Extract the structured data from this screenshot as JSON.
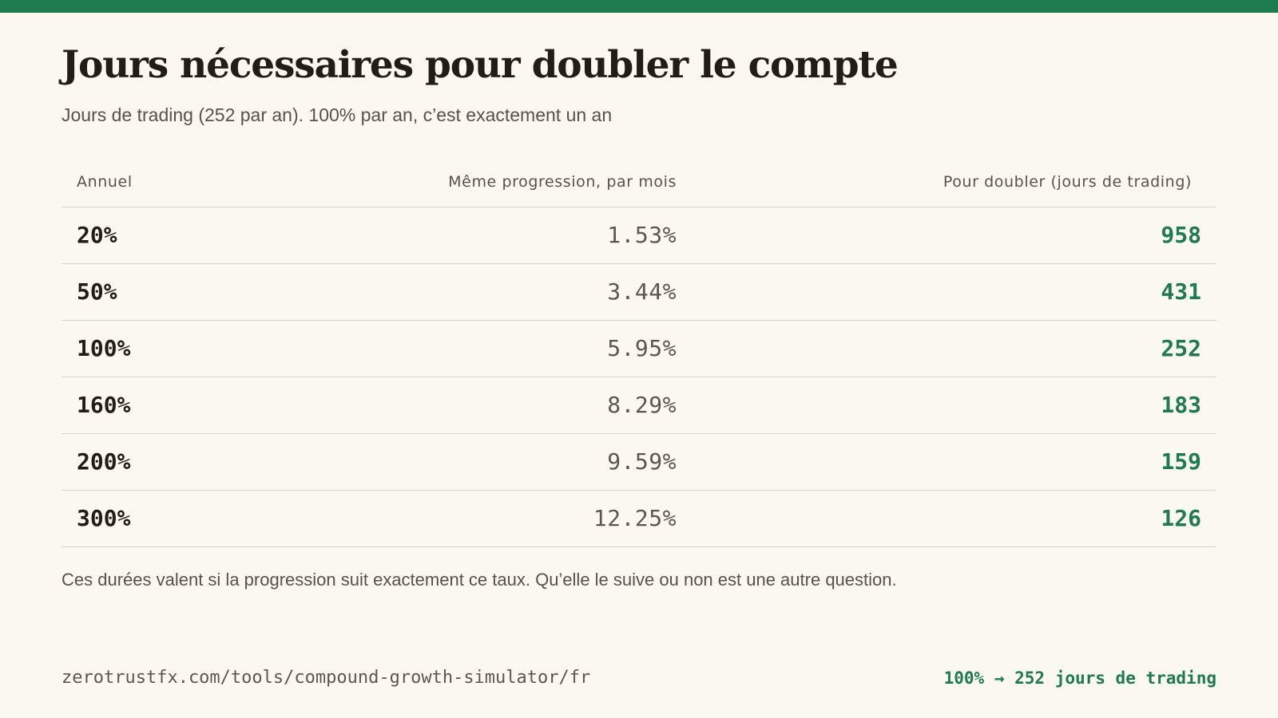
{
  "header": {
    "title": "Jours nécessaires pour doubler le compte",
    "subtitle": "Jours de trading (252 par an). 100% par an, c’est exactement un an"
  },
  "colors": {
    "accent": "#1e7a4f",
    "background": "#fbf8f0",
    "text": "#231d17",
    "muted": "#5a524a",
    "rule": "#d9d3c4"
  },
  "chart_data": {
    "type": "table",
    "columns": [
      "Annuel",
      "Même progression, par mois",
      "Pour doubler (jours de trading)"
    ],
    "rows": [
      {
        "annual": "20%",
        "monthly": "1.53%",
        "days": "958"
      },
      {
        "annual": "50%",
        "monthly": "3.44%",
        "days": "431"
      },
      {
        "annual": "100%",
        "monthly": "5.95%",
        "days": "252"
      },
      {
        "annual": "160%",
        "monthly": "8.29%",
        "days": "183"
      },
      {
        "annual": "200%",
        "monthly": "9.59%",
        "days": "159"
      },
      {
        "annual": "300%",
        "monthly": "12.25%",
        "days": "126"
      }
    ]
  },
  "note": "Ces durées valent si la progression suit exactement ce taux. Qu’elle le suive ou non est une autre question.",
  "footer": {
    "url": "zerotrustfx.com/tools/compound-growth-simulator/fr",
    "highlight": "100% → 252 jours de trading"
  }
}
